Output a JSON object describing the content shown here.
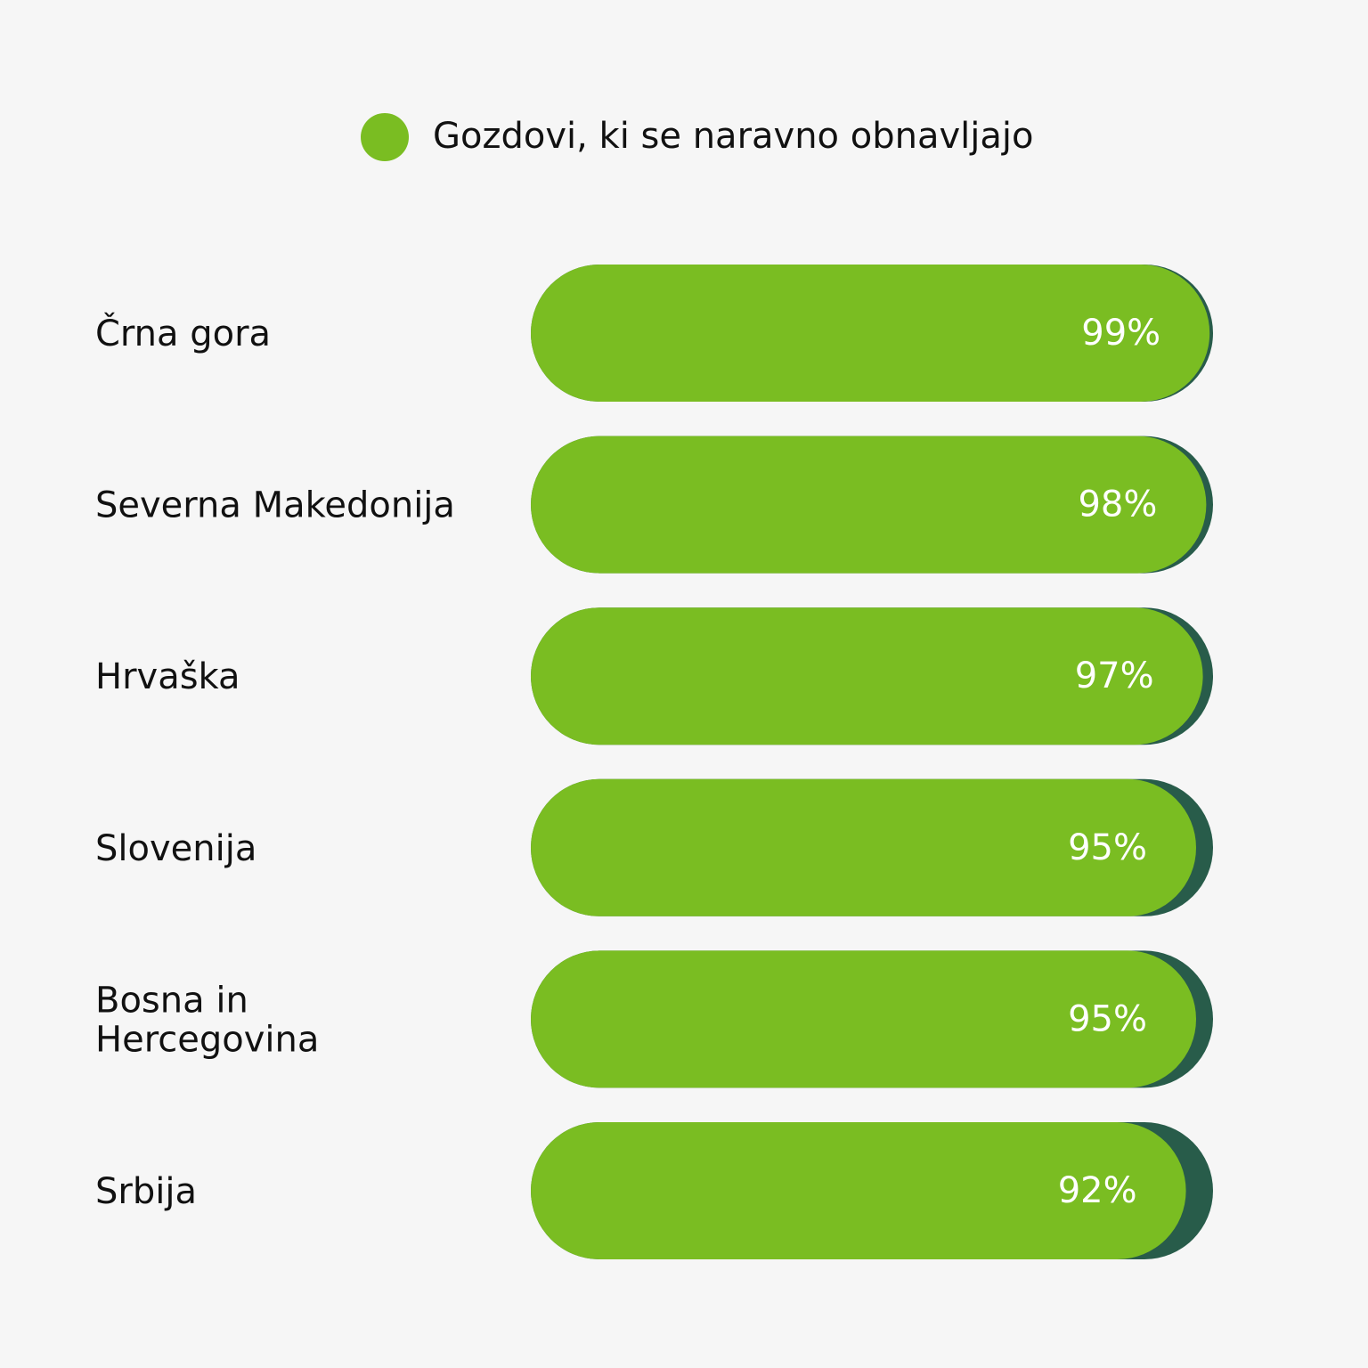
{
  "chart_data": {
    "type": "bar",
    "orientation": "horizontal",
    "legend": {
      "position": "top",
      "entries": [
        {
          "name": "Gozdovi, ki se naravno obnavljajo",
          "color": "#7abd22"
        }
      ]
    },
    "categories": [
      [
        "Črna gora"
      ],
      [
        "Severna Makedonija"
      ],
      [
        "Hrvaška"
      ],
      [
        "Slovenija"
      ],
      [
        "Bosna in",
        "Hercegovina"
      ],
      [
        "Srbija"
      ]
    ],
    "series": [
      {
        "name": "Gozdovi, ki se naravno obnavljajo",
        "values": [
          99,
          98,
          97,
          95,
          95,
          92
        ],
        "labels": [
          "99%",
          "98%",
          "97%",
          "95%",
          "95%",
          "92%"
        ],
        "color": "#7abd22"
      }
    ],
    "track_color": "#285c4a",
    "xlim": [
      0,
      100
    ],
    "grid": false
  }
}
